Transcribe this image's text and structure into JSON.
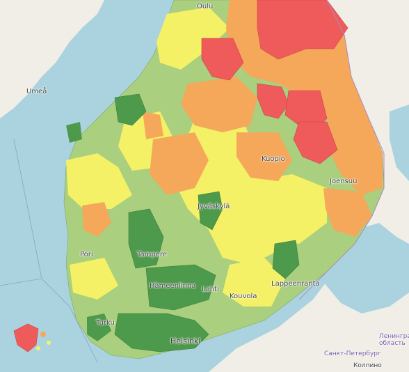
{
  "map": {
    "legend_colors": {
      "dark_green": "#4e9a4c",
      "light_green": "#a9cf7f",
      "yellow": "#f4f167",
      "orange": "#f5a85a",
      "red": "#ef5a5a",
      "water": "#aad3df",
      "land": "#f1eee8"
    },
    "labels": {
      "oulu": "Oulu",
      "umea": "Umeå",
      "kuopio": "Kuopio",
      "joensuu": "Joensuu",
      "jyvaskyla": "Jyväskylä",
      "tampere": "Tampere",
      "pori": "Pori",
      "hameenlinna": "Hämeenlinna",
      "lahti": "Lahti",
      "kouvola": "Kouvola",
      "lappeenranta": "Lappeenranta",
      "turku": "Turku",
      "helsinki": "Helsinki",
      "leningrad": "Ленинград\nобласть",
      "spb": "Санкт-Петербург",
      "kolpino": "Колпино"
    }
  }
}
